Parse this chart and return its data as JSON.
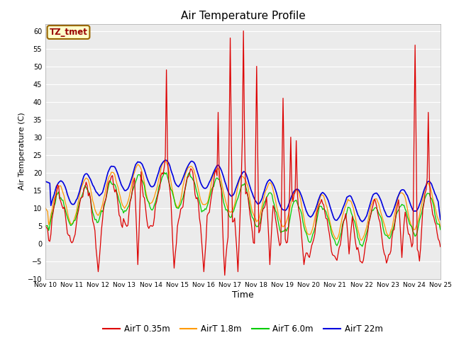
{
  "title": "Air Temperature Profile",
  "xlabel": "Time",
  "ylabel": "Air Temperature (C)",
  "ylim": [
    -10,
    62
  ],
  "yticks": [
    -10,
    -5,
    0,
    5,
    10,
    15,
    20,
    25,
    30,
    35,
    40,
    45,
    50,
    55,
    60
  ],
  "x_tick_labels": [
    "Nov 10",
    "Nov 11",
    "Nov 12",
    "Nov 13",
    "Nov 14",
    "Nov 15",
    "Nov 16",
    "Nov 17",
    "Nov 18",
    "Nov 19",
    "Nov 20",
    "Nov 21",
    "Nov 22",
    "Nov 23",
    "Nov 24",
    "Nov 25"
  ],
  "annotation_text": "TZ_tmet",
  "annotation_box_color": "#FFFFCC",
  "annotation_border_color": "#996600",
  "annotation_text_color": "#990000",
  "colors": {
    "AirT_035m": "#DD0000",
    "AirT_18m": "#FF9900",
    "AirT_60m": "#00CC00",
    "AirT_22m": "#0000DD"
  },
  "legend_labels": [
    "AirT 0.35m",
    "AirT 1.8m",
    "AirT 6.0m",
    "AirT 22m"
  ],
  "bg_color": "#E8E8E8",
  "plot_bg_color": "#EBEBEB",
  "grid_color": "#FFFFFF",
  "fig_bg": "#FFFFFF"
}
